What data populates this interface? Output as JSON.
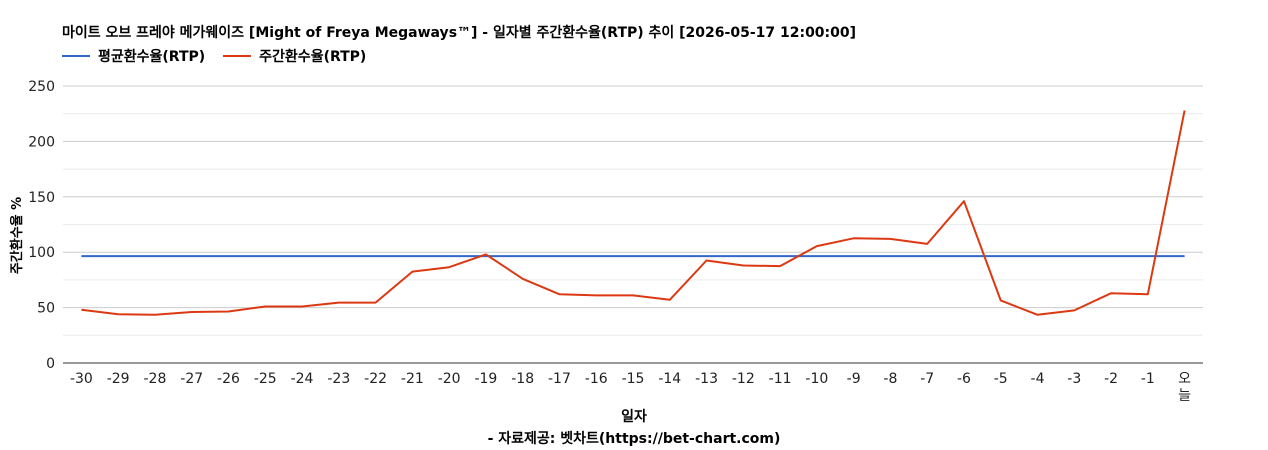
{
  "title": "마이트 오브 프레야 메가웨이즈 [Might of Freya Megaways™] - 일자별 주간환수율(RTP) 추이 [2026-05-17 12:00:00]",
  "source": "- 자료제공: 벳차트(https://bet-chart.com)",
  "chart_data": {
    "type": "line",
    "xlabel": "일자",
    "ylabel": "주간환수율 %",
    "ylim": [
      0,
      250
    ],
    "yticks": [
      0,
      50,
      100,
      150,
      200,
      250
    ],
    "grid": true,
    "legend_position": "top-left",
    "categories": [
      "-30",
      "-29",
      "-28",
      "-27",
      "-26",
      "-25",
      "-24",
      "-23",
      "-22",
      "-21",
      "-20",
      "-19",
      "-18",
      "-17",
      "-16",
      "-15",
      "-14",
      "-13",
      "-12",
      "-11",
      "-10",
      "-9",
      "-8",
      "-7",
      "-6",
      "-5",
      "-4",
      "-3",
      "-2",
      "-1",
      "오늘"
    ],
    "series": [
      {
        "name": "평균환수율(RTP)",
        "color": "#3366cc",
        "values": [
          96.5,
          96.5,
          96.5,
          96.5,
          96.5,
          96.5,
          96.5,
          96.5,
          96.5,
          96.5,
          96.5,
          96.5,
          96.5,
          96.5,
          96.5,
          96.5,
          96.5,
          96.5,
          96.5,
          96.5,
          96.5,
          96.5,
          96.5,
          96.5,
          96.5,
          96.5,
          96.5,
          96.5,
          96.5,
          96.5,
          96.5
        ]
      },
      {
        "name": "주간환수율(RTP)",
        "color": "#dc3912",
        "values": [
          48,
          44,
          43.5,
          46,
          46.5,
          51,
          51,
          54.5,
          54.5,
          82.5,
          86.5,
          98,
          76,
          62,
          61,
          61,
          57,
          92.5,
          88,
          87.5,
          105.5,
          112.5,
          112,
          107.5,
          146,
          56.5,
          43.5,
          47.5,
          63,
          62,
          228
        ]
      }
    ]
  }
}
